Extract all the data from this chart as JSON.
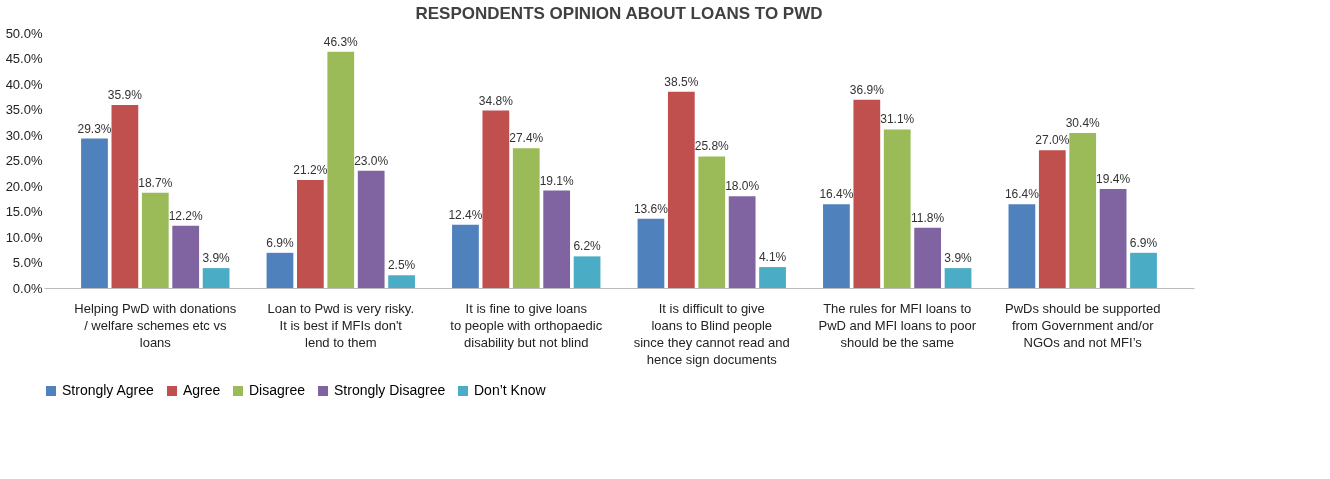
{
  "chart_data": {
    "type": "bar",
    "title": "RESPONDENTS OPINION ABOUT LOANS TO PWD",
    "categories": [
      "Helping PwD with donations / welfare schemes etc vs loans",
      "Loan to Pwd is very risky. It is best if MFIs don't lend to them",
      "It is fine to give loans  to people with orthopaedic disability but not blind",
      "It is difficult to give loans to Blind people  since they cannot read and hence sign documents",
      "The rules for MFI loans to PwD  and MFI loans to poor  should be the same",
      "PwDs should be supported from Government and/or NGOs and not MFI’s"
    ],
    "series": [
      {
        "name": "Strongly Agree",
        "color": "#4f81bd",
        "values": [
          29.3,
          6.9,
          12.4,
          13.6,
          16.4,
          16.4
        ],
        "value_labels": [
          "29.3%",
          "6.9%",
          "12.4%",
          "13.6%",
          "16.4%",
          "16.4%"
        ]
      },
      {
        "name": "Agree",
        "color": "#c0504d",
        "values": [
          35.9,
          21.2,
          34.8,
          38.5,
          36.9,
          27.0
        ],
        "value_labels": [
          "35.9%",
          "21.2%",
          "34.8%",
          "38.5%",
          "36.9%",
          "27.0%"
        ]
      },
      {
        "name": "Disagree",
        "color": "#9bbb59",
        "values": [
          18.7,
          46.3,
          27.4,
          25.8,
          31.1,
          30.4
        ],
        "value_labels": [
          "18.7%",
          "46.3%",
          "27.4%",
          "25.8%",
          "31.1%",
          "30.4%"
        ]
      },
      {
        "name": "Strongly Disagree",
        "color": "#8064a2",
        "values": [
          12.2,
          23.0,
          19.1,
          18.0,
          11.8,
          19.4
        ],
        "value_labels": [
          "12.2%",
          "23.0%",
          "19.1%",
          "18.0%",
          "11.8%",
          "19.4%"
        ]
      },
      {
        "name": "Don’t Know",
        "color": "#4bacc6",
        "values": [
          3.9,
          2.5,
          6.2,
          4.1,
          3.9,
          6.9
        ],
        "value_labels": [
          "3.9%",
          "2.5%",
          "6.2%",
          "4.1%",
          "3.9%",
          "6.9%"
        ]
      }
    ],
    "ylim": [
      0,
      50
    ],
    "yticks": [
      {
        "value": 0,
        "label": "0.0%"
      },
      {
        "value": 5,
        "label": "5.0%"
      },
      {
        "value": 10,
        "label": "10.0%"
      },
      {
        "value": 15,
        "label": "15.0%"
      },
      {
        "value": 20,
        "label": "20.0%"
      },
      {
        "value": 25,
        "label": "25.0%"
      },
      {
        "value": 30,
        "label": "30.0%"
      },
      {
        "value": 35,
        "label": "35.0%"
      },
      {
        "value": 40,
        "label": "40.0%"
      },
      {
        "value": 45,
        "label": "45.0%"
      },
      {
        "value": 50,
        "label": "50.0%"
      }
    ],
    "grid": false,
    "legend": "bottom"
  }
}
